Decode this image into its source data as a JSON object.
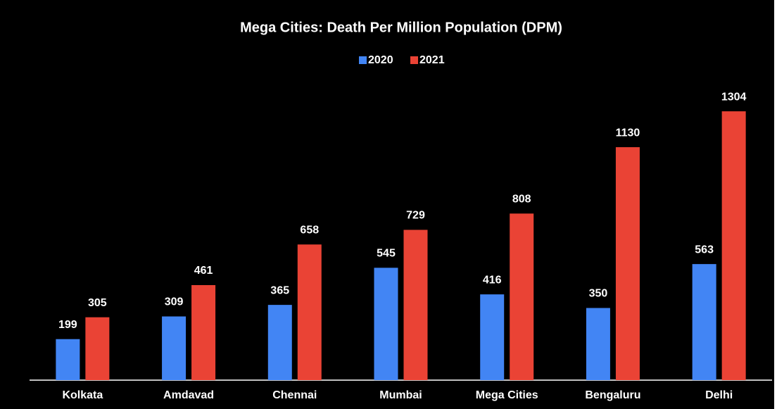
{
  "chart_data": {
    "type": "bar",
    "title": "Mega Cities: Death Per Million Population (DPM)",
    "categories": [
      "Kolkata",
      "Amdavad",
      "Chennai",
      "Mumbai",
      "Mega Cities",
      "Bengaluru",
      "Delhi"
    ],
    "series": [
      {
        "name": "2020",
        "color": "#4285f4",
        "values": [
          199,
          309,
          365,
          545,
          416,
          350,
          563
        ]
      },
      {
        "name": "2021",
        "color": "#ea4335",
        "values": [
          305,
          461,
          658,
          729,
          808,
          1130,
          1304
        ]
      }
    ],
    "ylim": [
      0,
      1400
    ],
    "legend": "top"
  }
}
